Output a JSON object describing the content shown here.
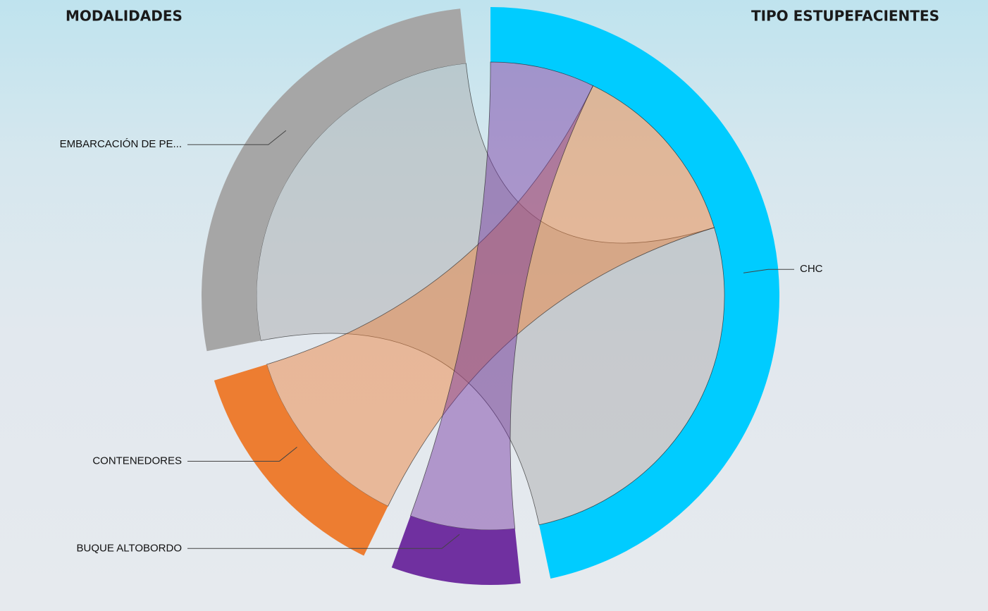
{
  "chart_data": {
    "type": "chord",
    "left_title": "MODALIDADES",
    "right_title": "TIPO ESTUPEFACIENTES",
    "targets": [
      "CHC"
    ],
    "target_colors": [
      "#00ccff"
    ],
    "series": [
      {
        "name": "EMBARCACIÓN DE PE...",
        "color": "#a6a6a6",
        "values": [
          95
        ]
      },
      {
        "name": "CONTENEDORES",
        "color": "#ed7d31",
        "values": [
          47
        ]
      },
      {
        "name": "BUQUE ALTOBORDO",
        "color": "#7030a0",
        "values": [
          26
        ]
      }
    ]
  }
}
